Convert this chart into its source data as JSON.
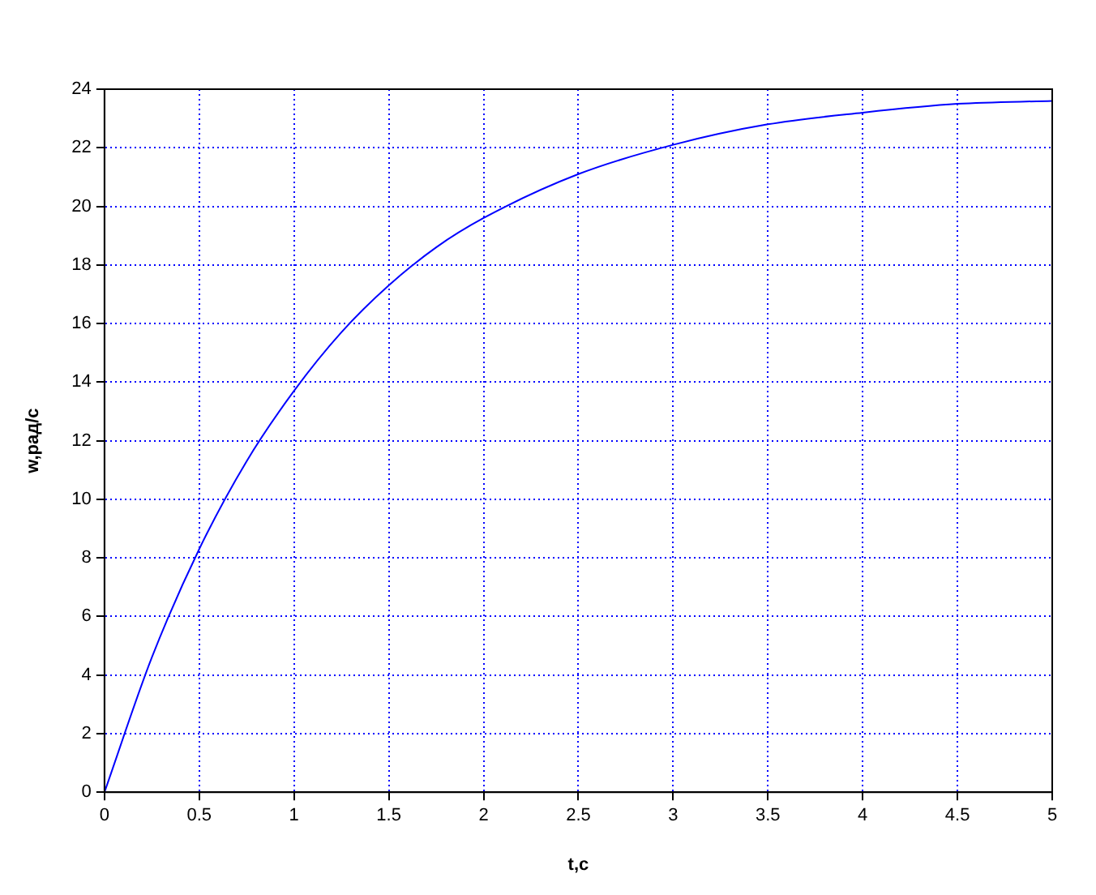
{
  "chart_data": {
    "type": "line",
    "xlabel": "t,c",
    "ylabel": "w,рад/с",
    "x": [
      0,
      0.25,
      0.5,
      0.75,
      1,
      1.25,
      1.5,
      1.75,
      2,
      2.5,
      3,
      3.5,
      4,
      4.5,
      5
    ],
    "series": [
      {
        "color": "#0000ff",
        "values": [
          0,
          4.6,
          8.3,
          11.3,
          13.7,
          15.7,
          17.3,
          18.6,
          19.6,
          21.1,
          22.1,
          22.8,
          23.2,
          23.5,
          23.6
        ]
      }
    ],
    "xlim": [
      0,
      5
    ],
    "xticks": [
      0,
      0.5,
      1,
      1.5,
      2,
      2.5,
      3,
      3.5,
      4,
      4.5,
      5
    ],
    "ylim": [
      0,
      24
    ],
    "yticks": [
      0,
      2,
      4,
      6,
      8,
      10,
      12,
      14,
      16,
      18,
      20,
      22,
      24
    ],
    "grid": true,
    "legend": false,
    "marker": "none",
    "line_style": "solid"
  }
}
